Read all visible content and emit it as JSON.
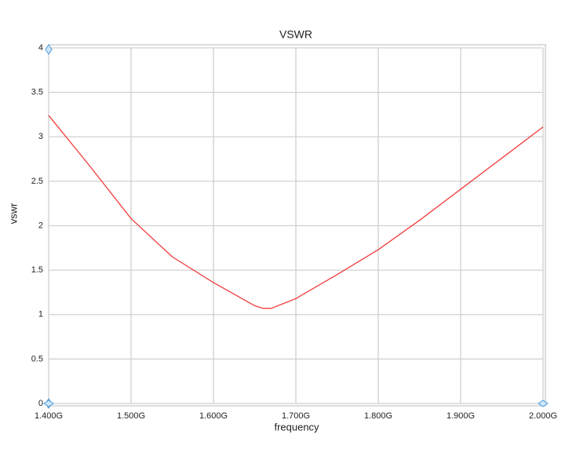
{
  "chart_data": {
    "type": "line",
    "title": "VSWR",
    "x_label": "frequency",
    "y_label": "vswr",
    "x": [
      1.4,
      1.45,
      1.5,
      1.55,
      1.6,
      1.65,
      1.66,
      1.67,
      1.7,
      1.75,
      1.8,
      1.85,
      1.9,
      1.95,
      2.0
    ],
    "values": [
      3.24,
      2.67,
      2.08,
      1.65,
      1.36,
      1.1,
      1.07,
      1.07,
      1.18,
      1.45,
      1.73,
      2.06,
      2.41,
      2.76,
      3.11
    ],
    "color": "#f03c3c",
    "xlim": [
      1.4,
      2.0
    ],
    "xticks": [
      {
        "value": 1.4,
        "label": "1.400G"
      },
      {
        "value": 1.5,
        "label": "1.500G"
      },
      {
        "value": 1.6,
        "label": "1.600G"
      },
      {
        "value": 1.7,
        "label": "1.700G"
      },
      {
        "value": 1.8,
        "label": "1.800G"
      },
      {
        "value": 1.9,
        "label": "1.900G"
      },
      {
        "value": 2.0,
        "label": "2.000G"
      }
    ],
    "ylim": [
      0,
      4
    ],
    "yticks": [
      0,
      0.5,
      1,
      1.5,
      2,
      2.5,
      3,
      3.5,
      4
    ],
    "grid": true
  }
}
